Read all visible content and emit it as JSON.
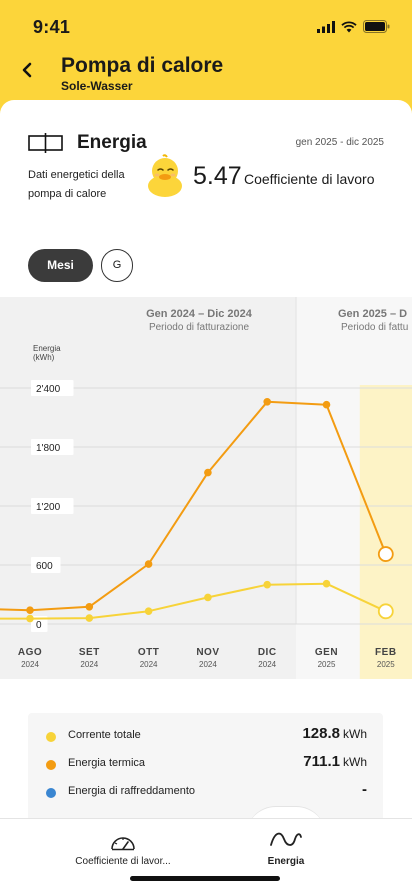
{
  "status_bar": {
    "time": "9:41"
  },
  "header": {
    "back_icon": "chevron-left-icon",
    "title": "Pompa di calore",
    "subtitle": "Sole-Wasser"
  },
  "card": {
    "icon": "heat-pump-icon",
    "title": "Energia",
    "period": "gen 2025 - dic 2025",
    "description": "Dati energetici della pompa di calore",
    "cop_value": "5.47",
    "cop_label": "Coefficiente di lavoro"
  },
  "toggles": {
    "months_label": "Mesi",
    "days_label": "G"
  },
  "chart": {
    "billing_periods": [
      {
        "title": "Gen 2024 – Dic 2024",
        "subtitle": "Periodo di fatturazione"
      },
      {
        "title": "Gen 2025 – D",
        "subtitle": "Periodo di fattu"
      }
    ]
  },
  "chart_data": {
    "type": "line",
    "ylabel": "Energia (kWh)",
    "ylabel_lines": [
      "Energia",
      "(kWh)"
    ],
    "ylim": [
      0,
      2400
    ],
    "yticks": [
      "0",
      "600",
      "1'200",
      "1'800",
      "2'400"
    ],
    "ytick_values": [
      0,
      600,
      1200,
      1800,
      2400
    ],
    "x_months": [
      "AGO",
      "SET",
      "OTT",
      "NOV",
      "DIC",
      "GEN",
      "FEB"
    ],
    "x_years": [
      "2024",
      "2024",
      "2024",
      "2024",
      "2024",
      "2025",
      "2025"
    ],
    "highlighted_month": "FEB",
    "series": [
      {
        "name": "Corrente totale",
        "color": "#f7d339",
        "values": [
          55,
          60,
          130,
          270,
          400,
          410,
          128.8
        ],
        "lead_in": 55
      },
      {
        "name": "Energia termica",
        "color": "#f39c12",
        "values": [
          140,
          175,
          610,
          1540,
          2260,
          2230,
          711.1
        ],
        "lead_in": 150
      }
    ]
  },
  "legend": {
    "items": [
      {
        "label": "Corrente totale",
        "color": "#f7d339",
        "value": "128.8",
        "unit": "kWh"
      },
      {
        "label": "Energia termica",
        "color": "#f39c12",
        "value": "711.1",
        "unit": "kWh"
      },
      {
        "label": "Energia di raffreddamento",
        "color": "#3a86d1",
        "value": "-"
      }
    ]
  },
  "bottom_nav": {
    "items": [
      {
        "label": "Coefficiente di lavor...",
        "icon": "gauge-icon"
      },
      {
        "label": "Energia",
        "icon": "energy-wave-icon"
      }
    ]
  }
}
